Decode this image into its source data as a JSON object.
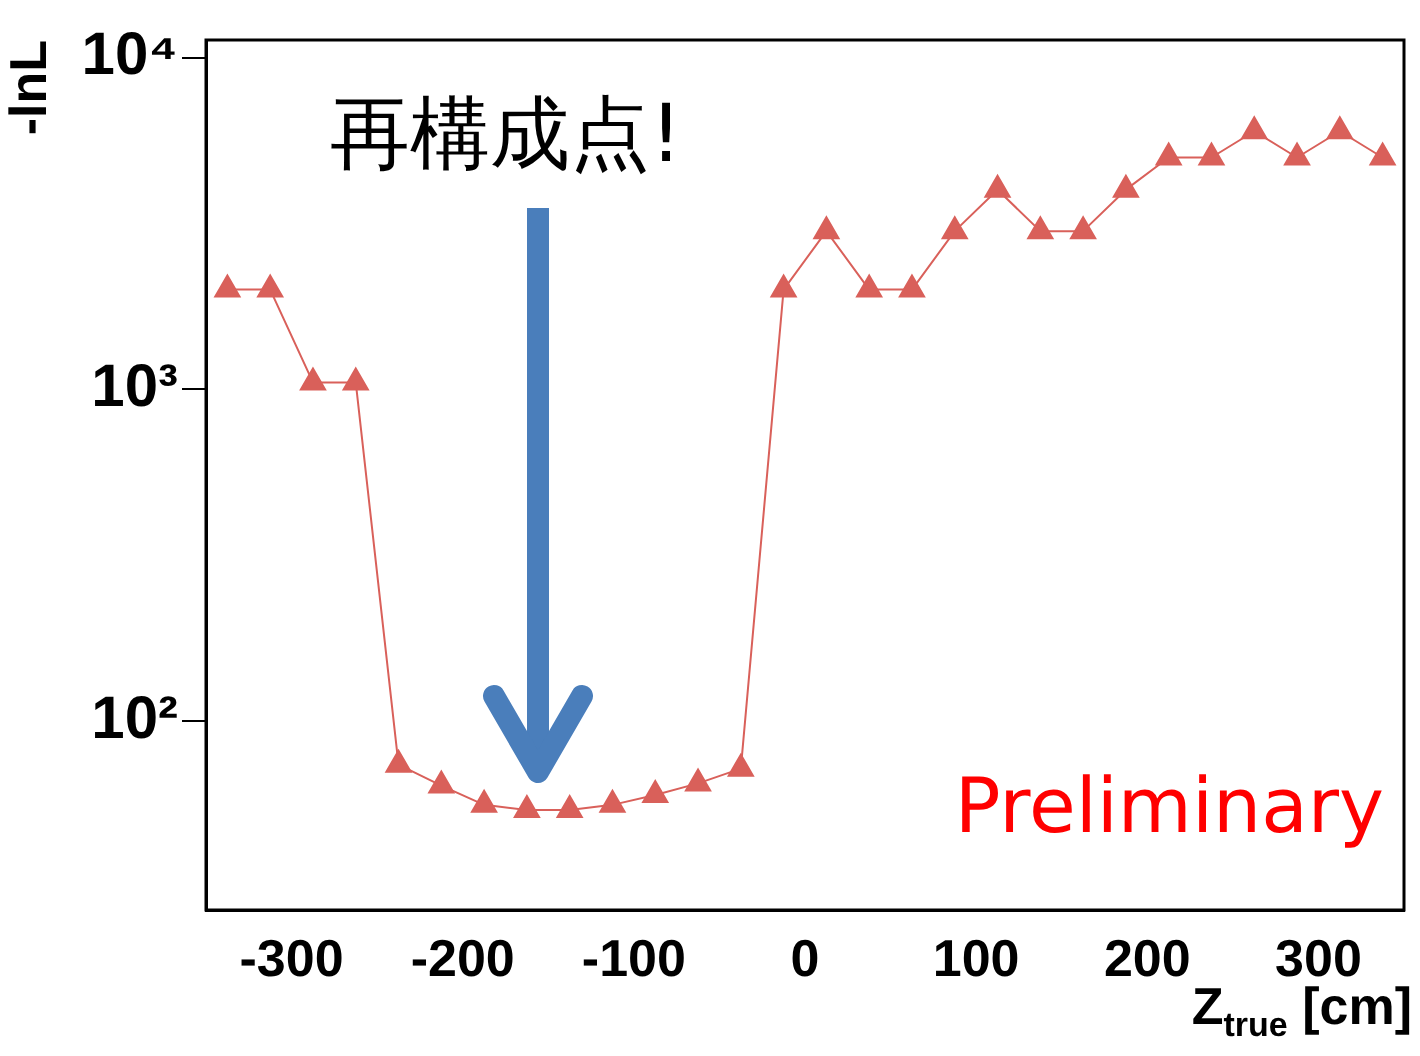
{
  "chart_data": {
    "type": "line",
    "xlabel": "Z$_{true}$ [cm]",
    "ylabel": "-lnL",
    "x": [
      -337.5,
      -312.5,
      -287.5,
      -262.5,
      -237.5,
      -212.5,
      -187.5,
      -162.5,
      -137.5,
      -112.5,
      -87.5,
      -62.5,
      -37.5,
      -12.5,
      12.5,
      37.5,
      62.5,
      87.5,
      112.5,
      137.5,
      162.5,
      187.5,
      212.5,
      237.5,
      262.5,
      287.5,
      312.5,
      337.5
    ],
    "series": [
      {
        "color": "#d9605a",
        "values": [
          2000,
          2000,
          1050,
          1050,
          74,
          64,
          56,
          54,
          54,
          56,
          60,
          65,
          72,
          2000,
          3000,
          2000,
          2000,
          3000,
          4000,
          3000,
          3000,
          4000,
          5000,
          5000,
          6000,
          5000,
          6000,
          5000
        ]
      }
    ],
    "xlim": [
      -350,
      350
    ],
    "xticks": [
      -300,
      -200,
      -100,
      0,
      100,
      200,
      300
    ],
    "ylim": [
      27,
      11300
    ],
    "yticks": [
      {
        "value": 100,
        "label": "10²"
      },
      {
        "value": 1000,
        "label": "10³"
      },
      {
        "value": 10000,
        "label": "10⁴"
      }
    ],
    "log": "y",
    "marker": "triangle",
    "line_style": "solid",
    "grid": false,
    "legend": false,
    "annotations": [
      "再構成点!",
      "Preliminary"
    ]
  }
}
